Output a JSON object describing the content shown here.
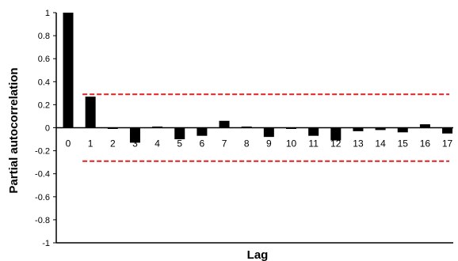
{
  "chart_data": {
    "type": "bar",
    "title": "",
    "xlabel": "Lag",
    "ylabel": "Partial autocorrelation",
    "categories": [
      "0",
      "1",
      "2",
      "3",
      "4",
      "5",
      "6",
      "7",
      "8",
      "9",
      "10",
      "11",
      "12",
      "13",
      "14",
      "15",
      "16",
      "17"
    ],
    "values": [
      1.0,
      0.27,
      -0.01,
      -0.13,
      0.005,
      -0.1,
      -0.07,
      0.06,
      0.0,
      -0.08,
      -0.01,
      -0.07,
      -0.11,
      -0.03,
      -0.02,
      -0.04,
      0.03,
      -0.05
    ],
    "y_ticks": [
      "-1",
      "-0.8",
      "-0.6",
      "-0.4",
      "-0.2",
      "0",
      "0.2",
      "0.4",
      "0.6",
      "0.8",
      "1"
    ],
    "ylim": [
      -1,
      1
    ],
    "confidence_bounds": [
      0.29,
      -0.29
    ],
    "colors": {
      "bars": "#000000",
      "confidence_bounds": "#e02020",
      "axes": "#000000"
    },
    "grid": false,
    "legend": "none"
  }
}
